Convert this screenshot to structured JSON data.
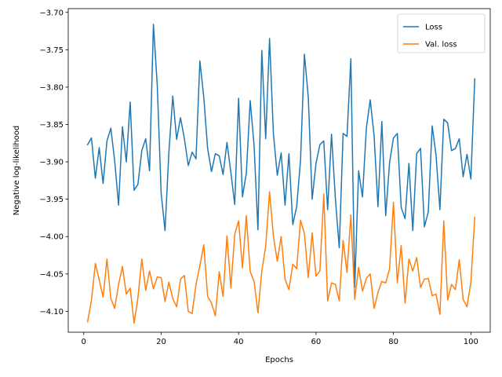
{
  "chart_data": {
    "type": "line",
    "xlabel": "Epochs",
    "ylabel": "Negative log-likelihood",
    "xlim": [
      -4,
      105
    ],
    "ylim": [
      -4.128,
      -3.695
    ],
    "x_ticks": [
      0,
      20,
      40,
      60,
      80,
      100
    ],
    "x_tick_labels": [
      "0",
      "20",
      "40",
      "60",
      "80",
      "100"
    ],
    "y_ticks": [
      -4.1,
      -4.05,
      -4.0,
      -3.95,
      -3.9,
      -3.85,
      -3.8,
      -3.75,
      -3.7
    ],
    "y_tick_labels": [
      "−4.10",
      "−4.05",
      "−4.00",
      "−3.95",
      "−3.90",
      "−3.85",
      "−3.80",
      "−3.75",
      "−3.70"
    ],
    "grid": false,
    "legend_position": "top-right",
    "x": [
      1,
      2,
      3,
      4,
      5,
      6,
      7,
      8,
      9,
      10,
      11,
      12,
      13,
      14,
      15,
      16,
      17,
      18,
      19,
      20,
      21,
      22,
      23,
      24,
      25,
      26,
      27,
      28,
      29,
      30,
      31,
      32,
      33,
      34,
      35,
      36,
      37,
      38,
      39,
      40,
      41,
      42,
      43,
      44,
      45,
      46,
      47,
      48,
      49,
      50,
      51,
      52,
      53,
      54,
      55,
      56,
      57,
      58,
      59,
      60,
      61,
      62,
      63,
      64,
      65,
      66,
      67,
      68,
      69,
      70,
      71,
      72,
      73,
      74,
      75,
      76,
      77,
      78,
      79,
      80,
      81,
      82,
      83,
      84,
      85,
      86,
      87,
      88,
      89,
      90,
      91,
      92,
      93,
      94,
      95,
      96,
      97,
      98,
      99,
      100,
      101
    ],
    "series": [
      {
        "name": "Loss",
        "color": "#1f77b4",
        "values": [
          -3.877,
          -3.868,
          -3.922,
          -3.881,
          -3.929,
          -3.872,
          -3.855,
          -3.899,
          -3.958,
          -3.853,
          -3.9,
          -3.82,
          -3.938,
          -3.93,
          -3.885,
          -3.869,
          -3.912,
          -3.716,
          -3.798,
          -3.942,
          -3.992,
          -3.887,
          -3.812,
          -3.87,
          -3.841,
          -3.869,
          -3.905,
          -3.887,
          -3.896,
          -3.765,
          -3.813,
          -3.882,
          -3.913,
          -3.889,
          -3.892,
          -3.917,
          -3.874,
          -3.914,
          -3.957,
          -3.815,
          -3.947,
          -3.915,
          -3.818,
          -3.878,
          -3.991,
          -3.751,
          -3.869,
          -3.735,
          -3.863,
          -3.918,
          -3.888,
          -3.958,
          -3.889,
          -3.984,
          -3.96,
          -3.898,
          -3.756,
          -3.813,
          -3.95,
          -3.902,
          -3.877,
          -3.872,
          -3.964,
          -3.863,
          -3.949,
          -4.015,
          -3.862,
          -3.866,
          -3.762,
          -4.068,
          -3.912,
          -3.947,
          -3.855,
          -3.817,
          -3.865,
          -3.96,
          -3.846,
          -3.972,
          -3.901,
          -3.868,
          -3.862,
          -3.961,
          -3.976,
          -3.902,
          -3.992,
          -3.889,
          -3.882,
          -3.987,
          -3.967,
          -3.852,
          -3.891,
          -3.964,
          -3.843,
          -3.848,
          -3.885,
          -3.882,
          -3.869,
          -3.92,
          -3.89,
          -3.923,
          -3.789
        ]
      },
      {
        "name": "Val. loss",
        "color": "#ff7f0e",
        "values": [
          -4.114,
          -4.085,
          -4.036,
          -4.058,
          -4.081,
          -4.03,
          -4.083,
          -4.096,
          -4.064,
          -4.04,
          -4.077,
          -4.069,
          -4.116,
          -4.082,
          -4.03,
          -4.072,
          -4.046,
          -4.07,
          -4.054,
          -4.055,
          -4.087,
          -4.061,
          -4.083,
          -4.094,
          -4.057,
          -4.052,
          -4.1,
          -4.103,
          -4.064,
          -4.039,
          -4.011,
          -4.08,
          -4.089,
          -4.106,
          -4.047,
          -4.08,
          -3.999,
          -4.069,
          -3.997,
          -3.979,
          -4.042,
          -3.972,
          -4.047,
          -4.06,
          -4.102,
          -4.046,
          -4.013,
          -3.94,
          -4.0,
          -4.033,
          -4.0,
          -4.057,
          -4.071,
          -4.037,
          -4.043,
          -3.978,
          -3.996,
          -4.055,
          -3.995,
          -4.053,
          -4.046,
          -3.943,
          -4.086,
          -4.062,
          -4.064,
          -4.086,
          -4.005,
          -4.048,
          -3.971,
          -4.084,
          -4.041,
          -4.073,
          -4.056,
          -4.05,
          -4.096,
          -4.075,
          -4.06,
          -4.062,
          -4.043,
          -3.954,
          -4.062,
          -4.012,
          -4.089,
          -4.03,
          -4.046,
          -4.028,
          -4.068,
          -4.057,
          -4.056,
          -4.079,
          -4.077,
          -4.104,
          -3.979,
          -4.085,
          -4.064,
          -4.071,
          -4.031,
          -4.084,
          -4.094,
          -4.061,
          -3.974
        ]
      }
    ]
  }
}
